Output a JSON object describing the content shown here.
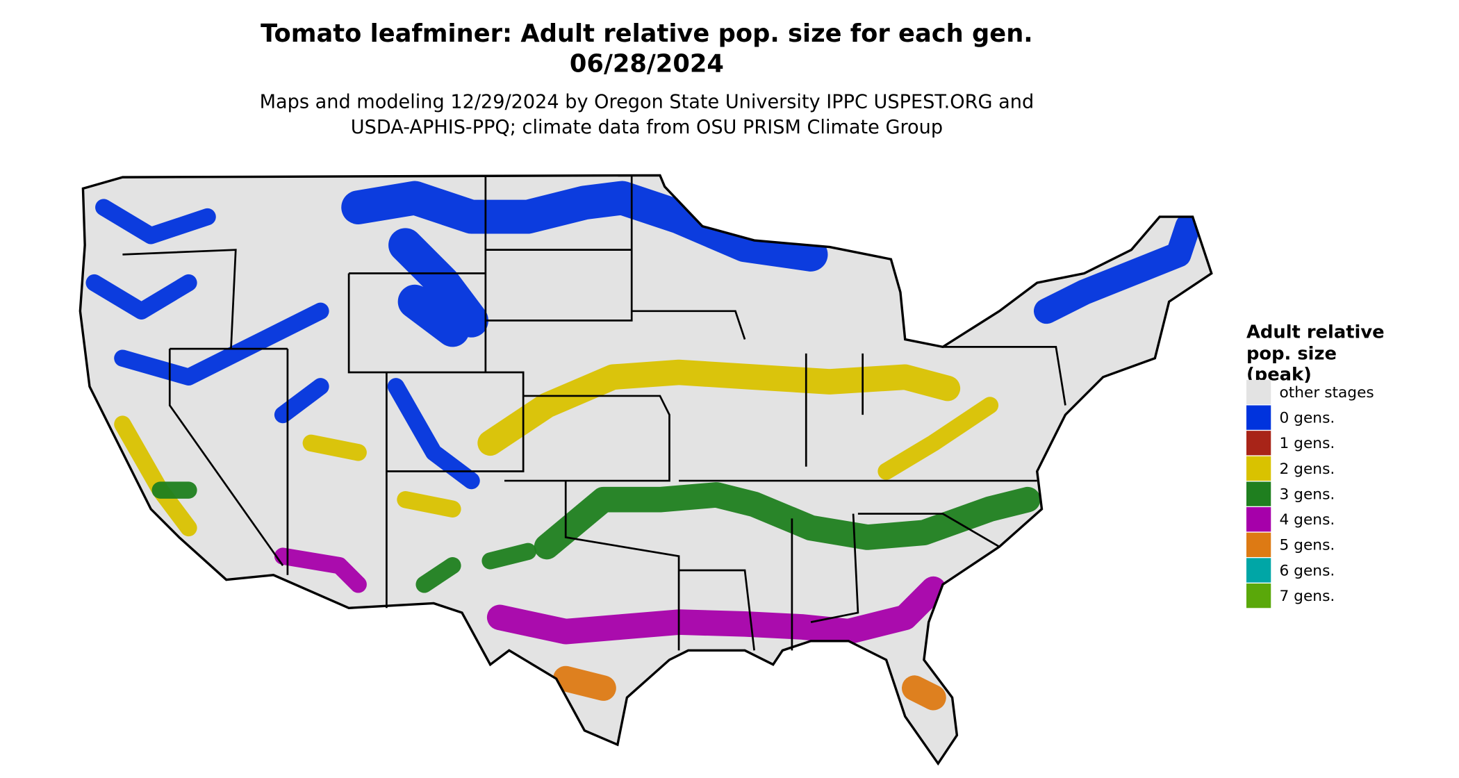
{
  "header": {
    "title": [
      "Tomato leafminer: Adult relative pop. size for each gen.",
      "06/28/2024"
    ],
    "subtitle": [
      "Maps and modeling 12/29/2024 by Oregon State University IPPC USPEST.ORG and",
      "USDA-APHIS-PPQ; climate data from OSU PRISM Climate Group"
    ]
  },
  "legend": {
    "title": [
      "Adult relative",
      "pop. size",
      "(peak)"
    ],
    "items": [
      {
        "label": "other stages",
        "color": "#e3e3e3"
      },
      {
        "label": "0 gens.",
        "color": "#0033dd"
      },
      {
        "label": "1 gens.",
        "color": "#a82418"
      },
      {
        "label": "2 gens.",
        "color": "#d9c200"
      },
      {
        "label": "3 gens.",
        "color": "#1f7f1f"
      },
      {
        "label": "4 gens.",
        "color": "#a600aa"
      },
      {
        "label": "5 gens.",
        "color": "#dd7a14"
      },
      {
        "label": "6 gens.",
        "color": "#00a6a6"
      },
      {
        "label": "7 gens.",
        "color": "#5aa80a"
      }
    ]
  }
}
